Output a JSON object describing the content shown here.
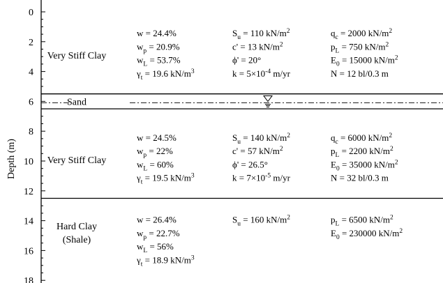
{
  "axis": {
    "title": "Depth (m)",
    "ticks": [
      "0",
      "2",
      "4",
      "6",
      "8",
      "10",
      "12",
      "14",
      "16",
      "18"
    ],
    "tick_values": [
      0,
      2,
      4,
      6,
      8,
      10,
      12,
      14,
      16,
      18
    ]
  },
  "boundaries": [
    5.5,
    6.5,
    12.5
  ],
  "water_table_depth": 6.1,
  "layers": [
    {
      "name_lines": [
        "Very Stiff Clay"
      ],
      "center_depth": 2.9,
      "props": [
        [
          "w = 24.4%",
          "w_p = 20.9%",
          "w_L = 53.7%",
          "γ_t = 19.6 kN/m^3"
        ],
        [
          "S_u = 110 kN/m^2",
          "c' = 13 kN/m^2",
          "ϕ' = 20°",
          "k = 5×10^-4 m/yr"
        ],
        [
          "q_c = 2000 kN/m^2",
          "p_L = 750 kN/m^2",
          "E_0 = 15000 kN/m^2",
          "N = 12 bl/0.3 m"
        ]
      ],
      "first_row_depth": 1.4
    },
    {
      "name_lines": [
        "Sand"
      ],
      "center_depth": 6.0,
      "props": [],
      "first_row_depth": 6.0
    },
    {
      "name_lines": [
        "Very Stiff Clay"
      ],
      "center_depth": 9.9,
      "props": [
        [
          "w = 24.5%",
          "w_p = 22%",
          "w_L = 60%",
          "γ_t = 19.5 kN/m^3"
        ],
        [
          "S_u = 140 kN/m^2",
          "c' = 57 kN/m^2",
          "ϕ' = 26.5°",
          "k = 7×10^-5 m/yr"
        ],
        [
          "q_c = 6000 kN/m^2",
          "p_L = 2200 kN/m^2",
          "E_0 = 35000 kN/m^2",
          "N = 32 bl/0.3 m"
        ]
      ],
      "first_row_depth": 8.4
    },
    {
      "name_lines": [
        "Hard Clay",
        "(Shale)"
      ],
      "center_depth": 14.8,
      "props": [
        [
          "w = 26.4%",
          "w_p = 22.7%",
          "w_L = 56%",
          "γ_t = 18.9 kN/m^3"
        ],
        [
          "S_u = 160 kN/m^2"
        ],
        [
          "p_L = 6500 kN/m^2",
          "E_0 = 230000 kN/m^2"
        ]
      ],
      "first_row_depth": 13.9
    }
  ]
}
